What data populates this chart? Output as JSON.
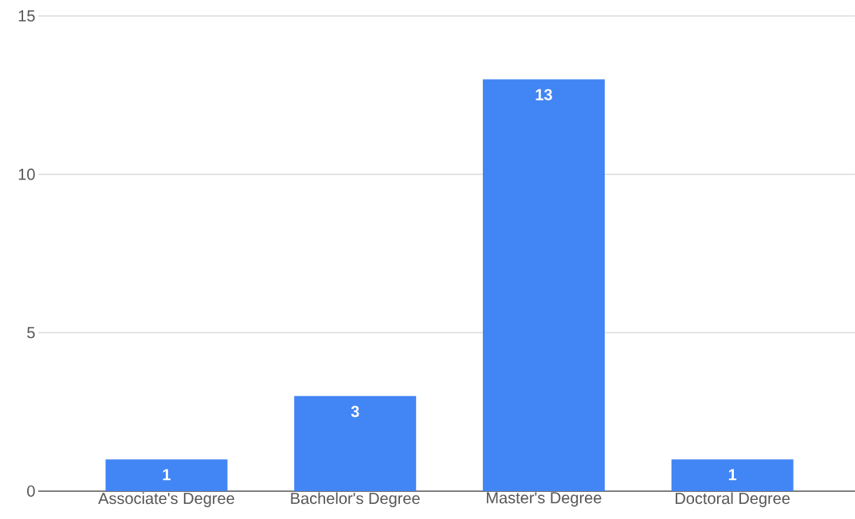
{
  "chart_data": {
    "type": "bar",
    "categories": [
      "Associate's Degree",
      "Bachelor's Degree",
      "Master's Degree",
      "Doctoral Degree"
    ],
    "values": [
      1,
      3,
      13,
      1
    ],
    "color": "#4285f4",
    "ylim": [
      0,
      15
    ],
    "yticks": [
      0,
      5,
      10,
      15
    ],
    "grid": "y",
    "data_labels": true
  }
}
